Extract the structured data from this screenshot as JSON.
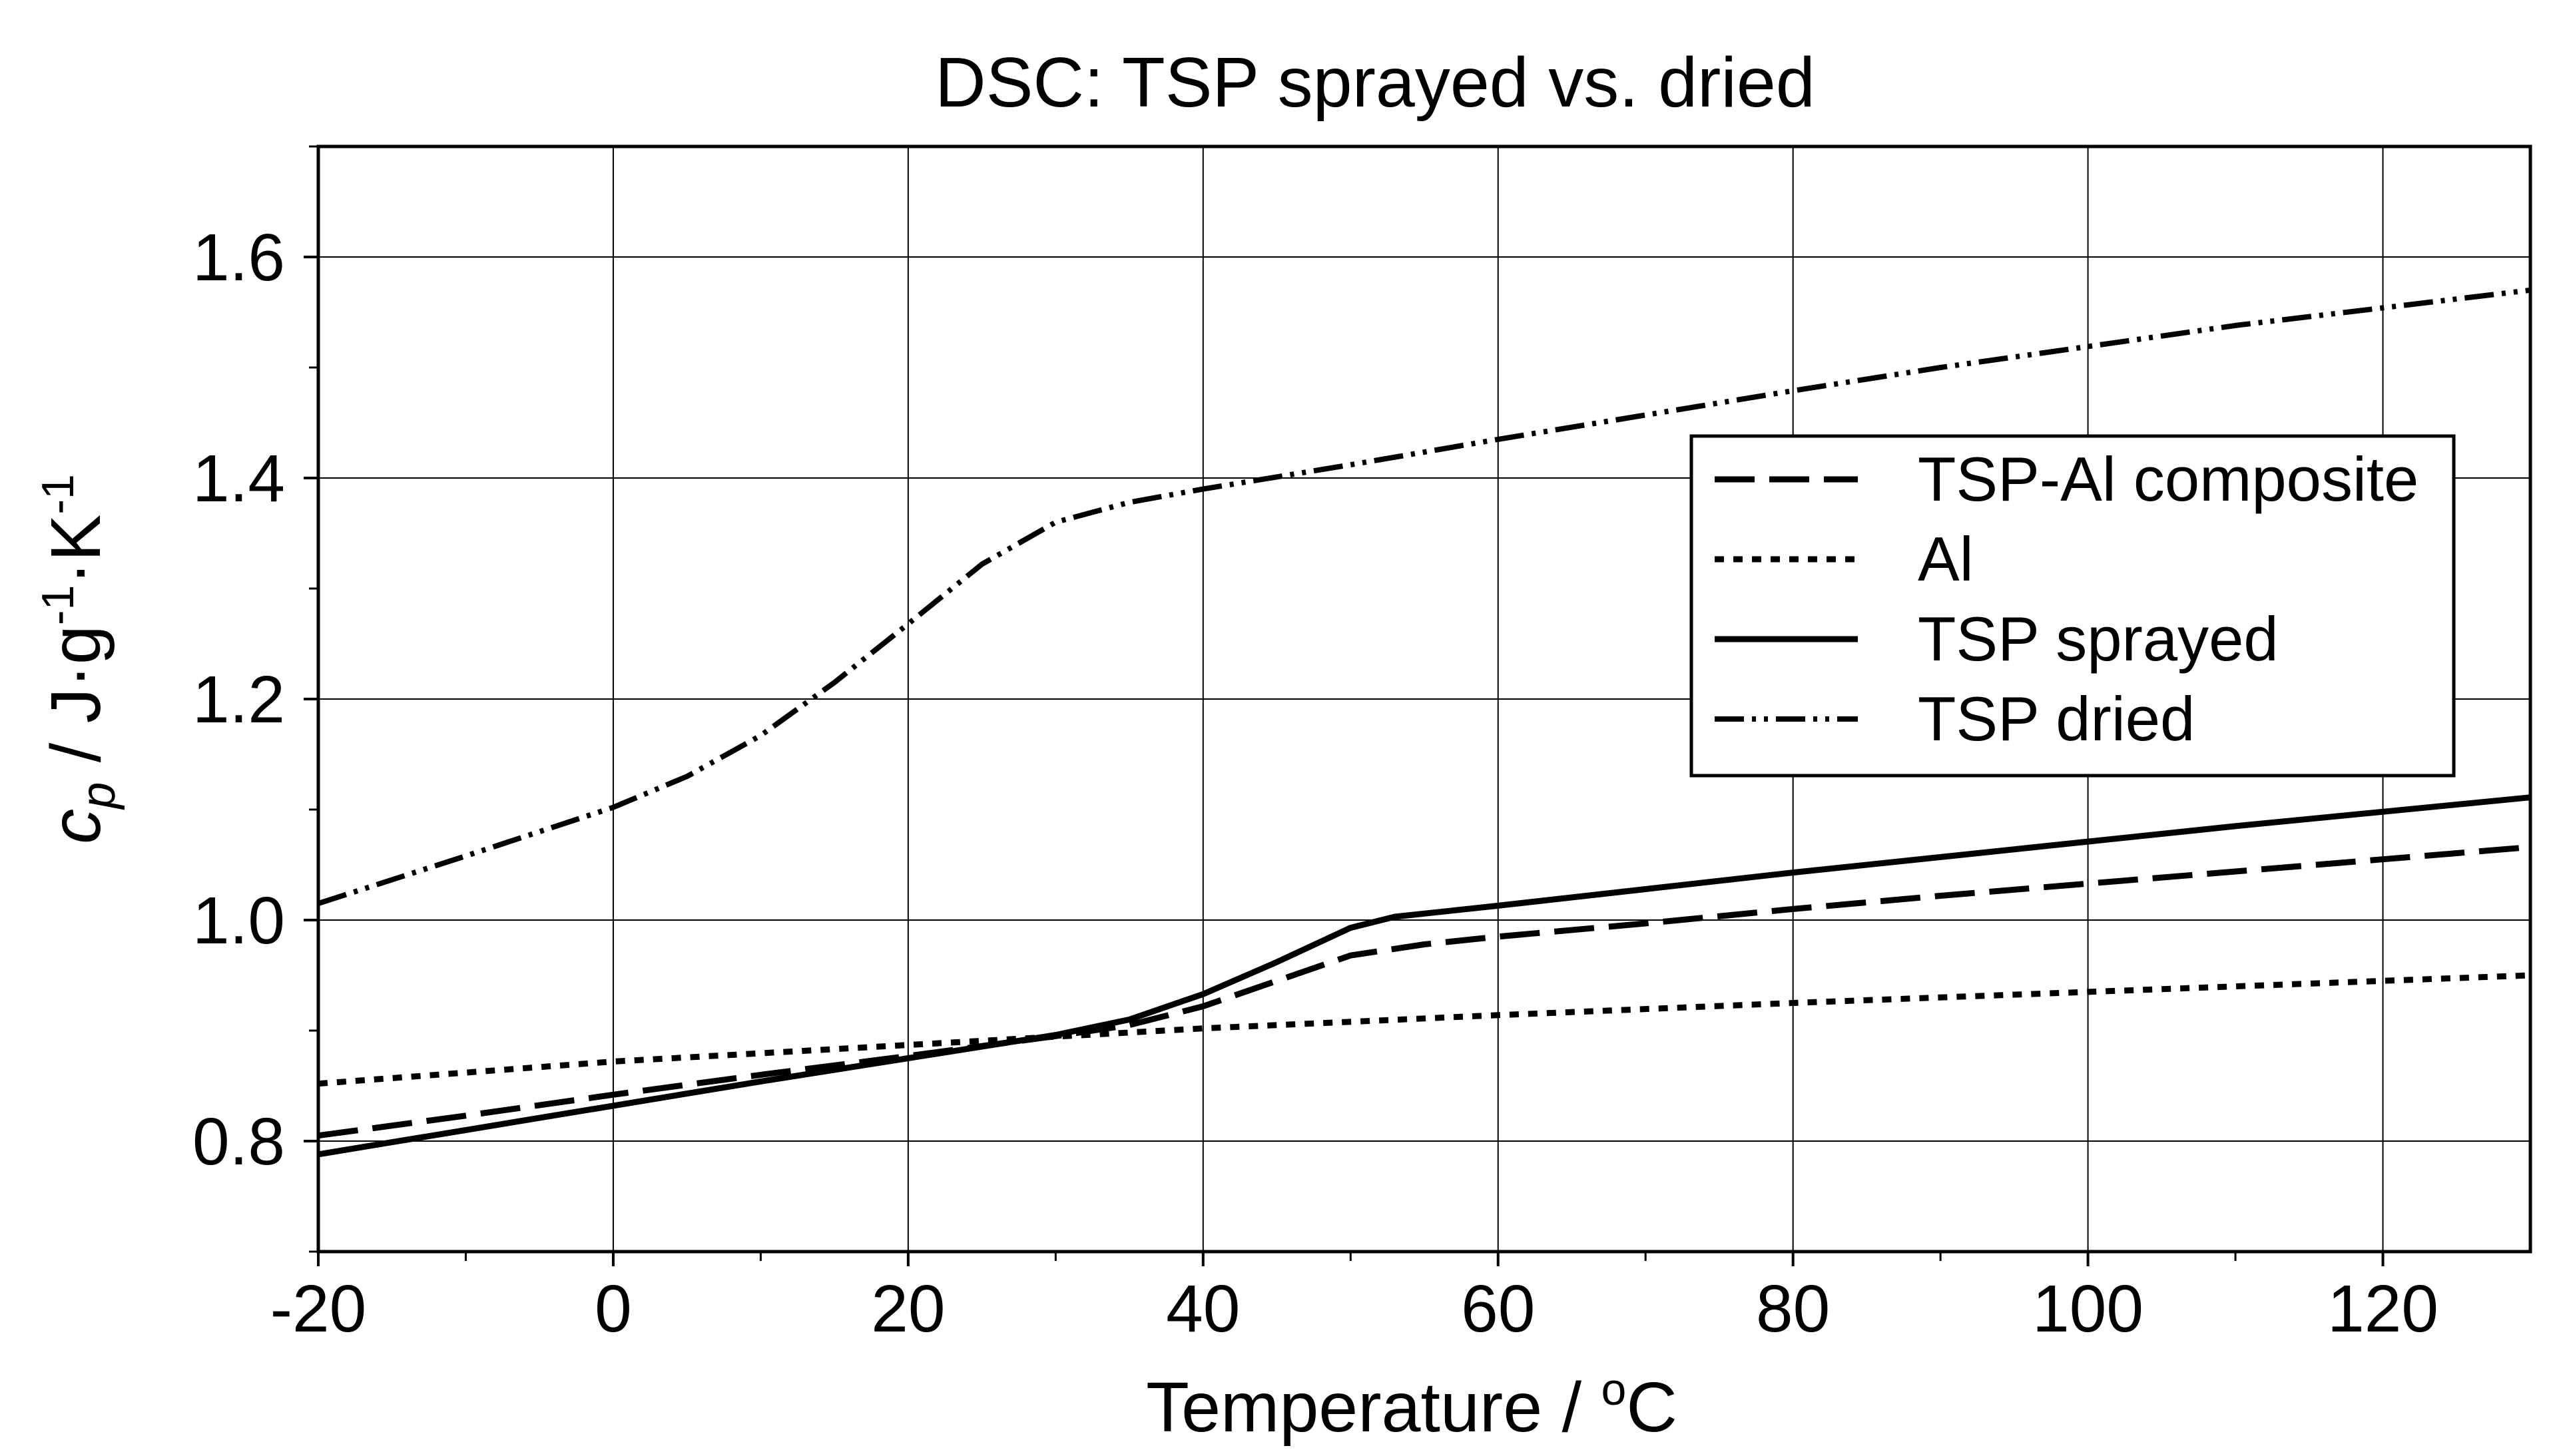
{
  "chart_data": {
    "type": "line",
    "title": "DSC: TSP sprayed vs. dried",
    "xlabel": "Temperature / °C",
    "xlabel_parts": {
      "text": "Temperature / ",
      "sup": "o",
      "unit": "C"
    },
    "ylabel": "c_p / J·g^-1·K^-1",
    "ylabel_parts": {
      "c": "c",
      "p": "p",
      "mid": " / J·g",
      "sup1": "-1",
      "k": "·K",
      "sup2": "-1"
    },
    "xlim": [
      -20,
      130
    ],
    "ylim": [
      0.7,
      1.7
    ],
    "xticks": [
      -20,
      0,
      20,
      40,
      60,
      80,
      100,
      120
    ],
    "xtick_labels": [
      "-20",
      "0",
      "20",
      "40",
      "60",
      "80",
      "100",
      "120"
    ],
    "yticks": [
      0.8,
      1.0,
      1.2,
      1.4,
      1.6
    ],
    "ytick_labels": [
      "0.8",
      "1.0",
      "1.2",
      "1.4",
      "1.6"
    ],
    "grid": true,
    "legend_position": "right",
    "series": [
      {
        "name": "TSP-Al composite",
        "style": "dashed",
        "x": [
          -20,
          -10,
          0,
          10,
          20,
          30,
          35,
          40,
          45,
          50,
          55,
          60,
          70,
          80,
          90,
          100,
          110,
          120,
          130
        ],
        "y": [
          0.805,
          0.823,
          0.842,
          0.86,
          0.877,
          0.895,
          0.905,
          0.922,
          0.945,
          0.968,
          0.978,
          0.985,
          0.997,
          1.01,
          1.022,
          1.033,
          1.044,
          1.055,
          1.066
        ]
      },
      {
        "name": "Al",
        "style": "dotted",
        "x": [
          -20,
          0,
          20,
          40,
          60,
          80,
          100,
          130
        ],
        "y": [
          0.852,
          0.872,
          0.887,
          0.902,
          0.914,
          0.925,
          0.935,
          0.95
        ]
      },
      {
        "name": "TSP sprayed",
        "style": "solid",
        "x": [
          -20,
          -10,
          0,
          10,
          20,
          30,
          35,
          40,
          45,
          50,
          53,
          60,
          70,
          80,
          90,
          100,
          110,
          120,
          130
        ],
        "y": [
          0.788,
          0.81,
          0.832,
          0.854,
          0.875,
          0.896,
          0.91,
          0.933,
          0.962,
          0.993,
          1.003,
          1.013,
          1.028,
          1.043,
          1.057,
          1.071,
          1.085,
          1.098,
          1.111
        ]
      },
      {
        "name": "TSP dried",
        "style": "dash-dot-dot",
        "x": [
          -20,
          -10,
          0,
          5,
          10,
          15,
          20,
          25,
          30,
          35,
          40,
          50,
          60,
          70,
          80,
          90,
          100,
          110,
          120,
          130
        ],
        "y": [
          1.015,
          1.058,
          1.102,
          1.13,
          1.167,
          1.215,
          1.268,
          1.322,
          1.36,
          1.378,
          1.39,
          1.412,
          1.435,
          1.457,
          1.479,
          1.5,
          1.519,
          1.538,
          1.554,
          1.57
        ]
      }
    ]
  }
}
